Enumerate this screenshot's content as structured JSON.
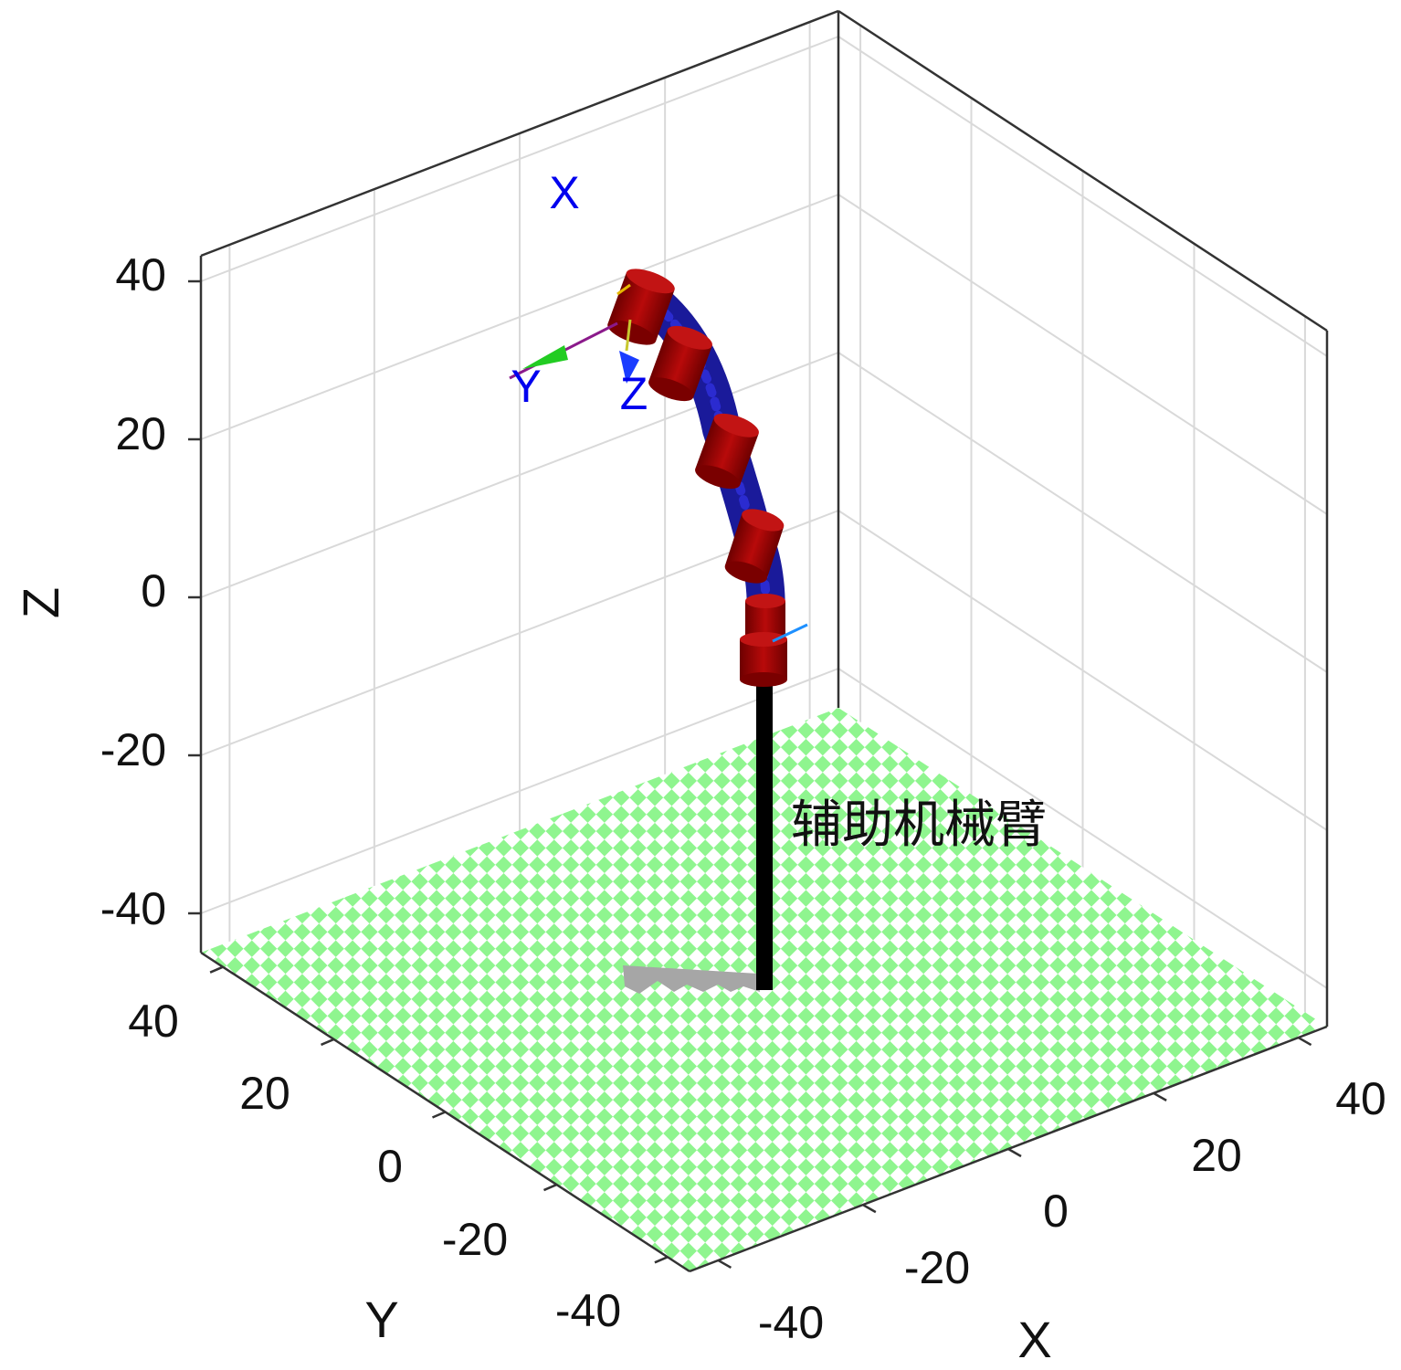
{
  "colors": {
    "background": "#ffffff",
    "axes_line": "#333333",
    "grid": "#d9d9d9",
    "floor_light": "#8ff58f",
    "floor_bg": "#ffffff",
    "joint": "#a00000",
    "link": "#1a1a9a",
    "base_pole": "#000000",
    "base_shadow": "#a6a6a6",
    "frame_label": "#0000ee",
    "y_arrow": "#22cc22",
    "z_arrow": "#1a3cff"
  },
  "axes": {
    "x_title": "X",
    "y_title": "Y",
    "z_title": "Z",
    "x_ticks": [
      "-40",
      "-20",
      "0",
      "20",
      "40"
    ],
    "y_ticks": [
      "40",
      "20",
      "0",
      "-20",
      "-40"
    ],
    "z_ticks": [
      "40",
      "20",
      "0",
      "-20",
      "-40"
    ]
  },
  "frame_labels": {
    "x": "X",
    "y": "Y",
    "z": "Z"
  },
  "robot": {
    "label": "辅助机械臂",
    "joint_count": 6
  }
}
